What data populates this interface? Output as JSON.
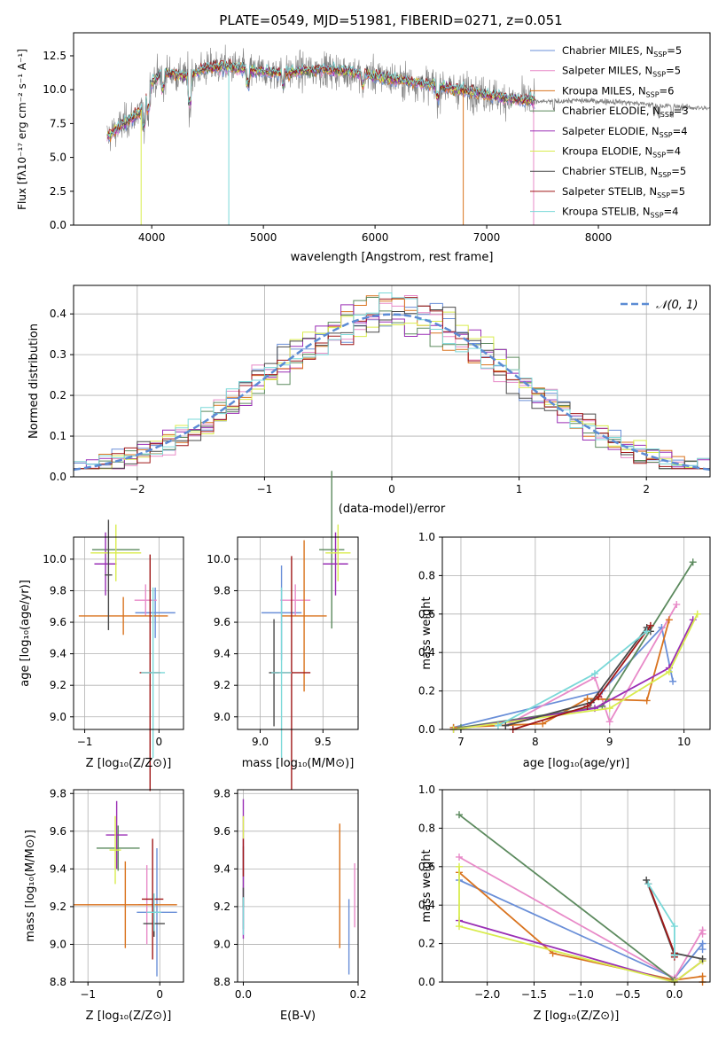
{
  "chart_data": [
    {
      "id": "spectrum",
      "type": "line",
      "title": "PLATE=0549, MJD=51981, FIBERID=0271, z=0.051",
      "xlabel": "wavelength [Angstrom, rest frame]",
      "ylabel": "Flux [fλ10⁻¹⁷ erg cm⁻² s⁻¹ A⁻¹]",
      "xlim": [
        3300,
        9000
      ],
      "ylim": [
        0,
        14.2
      ],
      "xticks": [
        4000,
        5000,
        6000,
        7000,
        8000
      ],
      "yticks": [
        "0.0",
        "2.5",
        "5.0",
        "7.5",
        "10.0",
        "12.5"
      ],
      "legend_position": "top-right",
      "series": [
        {
          "name": "Chabrier MILES, N_SSP=5",
          "label": "Chabrier MILES, N",
          "sub": "SSP",
          "suffix": "=5",
          "color": "#6a8fd8"
        },
        {
          "name": "Salpeter MILES, N_SSP=5",
          "label": "Salpeter MILES, N",
          "sub": "SSP",
          "suffix": "=5",
          "color": "#e88ac8"
        },
        {
          "name": "Kroupa MILES, N_SSP=6",
          "label": "Kroupa MILES, N",
          "sub": "SSP",
          "suffix": "=6",
          "color": "#d9731e"
        },
        {
          "name": "Chabrier ELODIE, N_SSP=3",
          "label": "Chabrier ELODIE, N",
          "sub": "SSP",
          "suffix": "=3",
          "color": "#5c8a5e"
        },
        {
          "name": "Salpeter ELODIE, N_SSP=4",
          "label": "Salpeter ELODIE, N",
          "sub": "SSP",
          "suffix": "=4",
          "color": "#9a2fb5"
        },
        {
          "name": "Kroupa ELODIE, N_SSP=4",
          "label": "Kroupa ELODIE, N",
          "sub": "SSP",
          "suffix": "=4",
          "color": "#d9ec4e"
        },
        {
          "name": "Chabrier STELIB, N_SSP=5",
          "label": "Chabrier STELIB, N",
          "sub": "SSP",
          "suffix": "=5",
          "color": "#4a4a4a"
        },
        {
          "name": "Salpeter STELIB, N_SSP=5",
          "label": "Salpeter STELIB, N",
          "sub": "SSP",
          "suffix": "=5",
          "color": "#a01818"
        },
        {
          "name": "Kroupa STELIB, N_SSP=4",
          "label": "Kroupa STELIB, N",
          "sub": "SSP",
          "suffix": "=4",
          "color": "#7ad8d8"
        }
      ],
      "data_color": "#808080",
      "continuum": [
        [
          3600,
          6.5
        ],
        [
          3700,
          7.2
        ],
        [
          3900,
          8.4
        ],
        [
          4000,
          10.5
        ],
        [
          4100,
          11.3
        ],
        [
          4300,
          11.0
        ],
        [
          4500,
          11.6
        ],
        [
          4700,
          11.7
        ],
        [
          4900,
          11.4
        ],
        [
          5200,
          11.2
        ],
        [
          5500,
          11.5
        ],
        [
          5800,
          11.3
        ],
        [
          6000,
          11.0
        ],
        [
          6300,
          10.6
        ],
        [
          6600,
          10.2
        ],
        [
          6900,
          9.8
        ],
        [
          7200,
          9.3
        ],
        [
          7500,
          9.1
        ],
        [
          7800,
          9.2
        ],
        [
          8200,
          9.1
        ],
        [
          8600,
          8.8
        ],
        [
          9000,
          8.6
        ]
      ]
    },
    {
      "id": "residuals",
      "type": "histogram",
      "xlabel": "(data-model)/error",
      "ylabel": "Normed distribution",
      "xlim": [
        -2.5,
        2.5
      ],
      "ylim": [
        0,
        0.47
      ],
      "xticks": [
        "−2",
        "−1",
        "0",
        "1",
        "2"
      ],
      "xtick_values": [
        -2,
        -1,
        0,
        1,
        2
      ],
      "yticks": [
        "0.0",
        "0.1",
        "0.2",
        "0.3",
        "0.4"
      ],
      "ytick_values": [
        0,
        0.1,
        0.2,
        0.3,
        0.4
      ],
      "grid": true,
      "reference_curve": {
        "name": "𝒩(0, 1)",
        "color": "#5b8bd4"
      },
      "legend_position": "top-right"
    },
    {
      "id": "age_vs_Z",
      "type": "errorbar",
      "xlabel": "Z [log₁₀(Z/Z⊙)]",
      "ylabel": "age  [log₁₀(age/yr)]",
      "xlim": [
        -1.15,
        0.33
      ],
      "ylim": [
        8.92,
        10.14
      ],
      "xticks": [
        "−1",
        "0"
      ],
      "xtick_values": [
        -1,
        0
      ],
      "yticks": [
        "9.0",
        "9.2",
        "9.4",
        "9.6",
        "9.8",
        "10.0"
      ],
      "ytick_values": [
        9.0,
        9.2,
        9.4,
        9.6,
        9.8,
        10.0
      ],
      "points": [
        {
          "series": "Chabrier MILES",
          "x": -0.05,
          "y": 9.66,
          "xerr": 0.27,
          "yerr": 0.16
        },
        {
          "series": "Salpeter MILES",
          "x": -0.18,
          "y": 9.74,
          "xerr": 0.15,
          "yerr": 0.1
        },
        {
          "series": "Kroupa MILES",
          "x": -0.48,
          "y": 9.64,
          "xerr": 0.6,
          "yerr": 0.12
        },
        {
          "series": "Chabrier ELODIE",
          "x": -0.58,
          "y": 10.06,
          "xerr": 0.32,
          "yerr": 0.0
        },
        {
          "series": "Salpeter ELODIE",
          "x": -0.72,
          "y": 9.97,
          "xerr": 0.15,
          "yerr": 0.2
        },
        {
          "series": "Kroupa ELODIE",
          "x": -0.58,
          "y": 10.04,
          "xerr": 0.34,
          "yerr": 0.18
        },
        {
          "series": "Chabrier STELIB",
          "x": -0.68,
          "y": 9.9,
          "xerr": 0.05,
          "yerr": 0.35
        },
        {
          "series": "Salpeter STELIB",
          "x": -0.12,
          "y": 9.28,
          "xerr": 0.14,
          "yerr": 0.75
        },
        {
          "series": "Kroupa STELIB",
          "x": -0.08,
          "y": 9.28,
          "xerr": 0.16,
          "yerr": 0.54
        }
      ]
    },
    {
      "id": "age_vs_mass",
      "type": "errorbar",
      "xlabel": "mass [log₁₀(M/M⊙)]",
      "ylabel": "",
      "xlim": [
        8.82,
        9.78
      ],
      "ylim": [
        8.92,
        10.14
      ],
      "xticks": [
        "9.0",
        "9.5"
      ],
      "xtick_values": [
        9.0,
        9.5
      ],
      "yticks": [
        "9.0",
        "9.2",
        "9.4",
        "9.6",
        "9.8",
        "10.0"
      ],
      "ytick_values": [
        9.0,
        9.2,
        9.4,
        9.6,
        9.8,
        10.0
      ],
      "points": [
        {
          "series": "Chabrier MILES",
          "x": 9.17,
          "y": 9.66,
          "xerr": 0.16,
          "yerr": 0.3
        },
        {
          "series": "Salpeter MILES",
          "x": 9.28,
          "y": 9.74,
          "xerr": 0.12,
          "yerr": 0.1
        },
        {
          "series": "Kroupa MILES",
          "x": 9.35,
          "y": 9.64,
          "xerr": 0.18,
          "yerr": 0.48
        },
        {
          "series": "Chabrier ELODIE",
          "x": 9.57,
          "y": 10.06,
          "xerr": 0.1,
          "yerr": 0.5
        },
        {
          "series": "Salpeter ELODIE",
          "x": 9.6,
          "y": 9.97,
          "xerr": 0.1,
          "yerr": 0.2
        },
        {
          "series": "Kroupa ELODIE",
          "x": 9.62,
          "y": 10.04,
          "xerr": 0.1,
          "yerr": 0.18
        },
        {
          "series": "Chabrier STELIB",
          "x": 9.11,
          "y": 9.28,
          "xerr": 0.04,
          "yerr": 0.34
        },
        {
          "series": "Salpeter STELIB",
          "x": 9.25,
          "y": 9.28,
          "xerr": 0.15,
          "yerr": 0.74
        },
        {
          "series": "Kroupa STELIB",
          "x": 9.17,
          "y": 9.28,
          "xerr": 0.08,
          "yerr": 0.54
        }
      ]
    },
    {
      "id": "mass_weight_vs_age",
      "type": "line",
      "xlabel": "age  [log₁₀(age/yr)]",
      "ylabel": "mass weight",
      "xlim": [
        6.75,
        10.35
      ],
      "ylim": [
        0,
        1.0
      ],
      "xticks": [
        "7",
        "8",
        "9",
        "10"
      ],
      "xtick_values": [
        7,
        8,
        9,
        10
      ],
      "yticks": [
        "0.0",
        "0.2",
        "0.4",
        "0.6",
        "0.8",
        "1.0"
      ],
      "ytick_values": [
        0,
        0.2,
        0.4,
        0.6,
        0.8,
        1.0
      ],
      "grid": true,
      "series": [
        {
          "name": "Chabrier MILES",
          "x": [
            6.9,
            8.9,
            9.7,
            9.85
          ],
          "y": [
            0.01,
            0.2,
            0.53,
            0.25
          ]
        },
        {
          "name": "Salpeter MILES",
          "x": [
            7.6,
            8.8,
            9.0,
            9.9
          ],
          "y": [
            0.02,
            0.27,
            0.04,
            0.65
          ]
        },
        {
          "name": "Kroupa MILES",
          "x": [
            6.9,
            8.1,
            8.7,
            9.5,
            9.8
          ],
          "y": [
            0.01,
            0.03,
            0.16,
            0.15,
            0.57
          ]
        },
        {
          "name": "Chabrier ELODIE",
          "x": [
            7.0,
            8.9,
            10.12
          ],
          "y": [
            0.01,
            0.12,
            0.87
          ]
        },
        {
          "name": "Salpeter ELODIE",
          "x": [
            6.9,
            8.8,
            9.8,
            10.12
          ],
          "y": [
            0.0,
            0.11,
            0.32,
            0.57
          ]
        },
        {
          "name": "Kroupa ELODIE",
          "x": [
            6.9,
            9.0,
            9.8,
            10.18
          ],
          "y": [
            0.0,
            0.11,
            0.3,
            0.6
          ]
        },
        {
          "name": "Chabrier STELIB",
          "x": [
            7.6,
            8.75,
            9.5,
            9.55
          ],
          "y": [
            0.02,
            0.14,
            0.53,
            0.51
          ]
        },
        {
          "name": "Salpeter STELIB",
          "x": [
            7.7,
            8.7,
            8.85,
            9.55
          ],
          "y": [
            0.0,
            0.12,
            0.17,
            0.54
          ]
        },
        {
          "name": "Kroupa STELIB",
          "x": [
            7.5,
            8.8,
            9.5
          ],
          "y": [
            0.02,
            0.29,
            0.51
          ]
        }
      ]
    },
    {
      "id": "mass_vs_Z",
      "type": "errorbar",
      "xlabel": "Z [log₁₀(Z/Z⊙)]",
      "ylabel": "mass [log₁₀(M/M⊙)]",
      "xlim": [
        -1.2,
        0.33
      ],
      "ylim": [
        8.8,
        9.82
      ],
      "xticks": [
        "−1",
        "0"
      ],
      "xtick_values": [
        -1,
        0
      ],
      "yticks": [
        "8.8",
        "9.0",
        "9.2",
        "9.4",
        "9.6",
        "9.8"
      ],
      "ytick_values": [
        8.8,
        9.0,
        9.2,
        9.4,
        9.6,
        9.8
      ],
      "points": [
        {
          "series": "Chabrier MILES",
          "x": -0.04,
          "y": 9.17,
          "xerr": 0.28,
          "yerr": 0.34
        },
        {
          "series": "Salpeter MILES",
          "x": -0.18,
          "y": 9.21,
          "xerr": 0.12,
          "yerr": 0.21
        },
        {
          "series": "Kroupa MILES",
          "x": -0.48,
          "y": 9.21,
          "xerr": 0.72,
          "yerr": 0.23
        },
        {
          "series": "Chabrier ELODIE",
          "x": -0.58,
          "y": 9.51,
          "xerr": 0.3,
          "yerr": 0.12
        },
        {
          "series": "Salpeter ELODIE",
          "x": -0.6,
          "y": 9.58,
          "xerr": 0.15,
          "yerr": 0.18
        },
        {
          "series": "Kroupa ELODIE",
          "x": -0.62,
          "y": 9.5,
          "xerr": 0.08,
          "yerr": 0.18
        },
        {
          "series": "Chabrier STELIB",
          "x": -0.08,
          "y": 9.11,
          "xerr": 0.15,
          "yerr": 0.07
        },
        {
          "series": "Salpeter STELIB",
          "x": -0.1,
          "y": 9.24,
          "xerr": 0.15,
          "yerr": 0.32
        },
        {
          "series": "Kroupa STELIB",
          "x": -0.08,
          "y": 9.17,
          "xerr": 0.1,
          "yerr": 0.1
        }
      ]
    },
    {
      "id": "mass_vs_EBV",
      "type": "errorbar",
      "xlabel": "E(B-V)",
      "ylabel": "",
      "xlim": [
        -0.01,
        0.2
      ],
      "ylim": [
        8.8,
        9.82
      ],
      "xticks": [
        "0.0",
        "0.2"
      ],
      "xtick_values": [
        0.0,
        0.2
      ],
      "yticks": [
        "8.8",
        "9.0",
        "9.2",
        "9.4",
        "9.6",
        "9.8"
      ],
      "ytick_values": [
        8.8,
        9.0,
        9.2,
        9.4,
        9.6,
        9.8
      ],
      "points": [
        {
          "series": "Chabrier MILES",
          "x": 0.184,
          "y": 9.04,
          "xerr": 0.0,
          "yerr": 0.2
        },
        {
          "series": "Salpeter MILES",
          "x": 0.194,
          "y": 9.26,
          "xerr": 0.0,
          "yerr": 0.17
        },
        {
          "series": "Kroupa MILES",
          "x": 0.168,
          "y": 9.31,
          "xerr": 0.0,
          "yerr": 0.33
        },
        {
          "series": "Chabrier ELODIE",
          "x": 0.0,
          "y": 9.3,
          "xerr": 0.0,
          "yerr": 0.22
        },
        {
          "series": "Salpeter ELODIE",
          "x": 0.0,
          "y": 9.4,
          "xerr": 0.0,
          "yerr": 0.37
        },
        {
          "series": "Kroupa ELODIE",
          "x": 0.0,
          "y": 9.62,
          "xerr": 0.0,
          "yerr": 0.06
        },
        {
          "series": "Chabrier STELIB",
          "x": 0.0,
          "y": 9.25,
          "xerr": 0.0,
          "yerr": 0.05
        },
        {
          "series": "Salpeter STELIB",
          "x": 0.0,
          "y": 9.46,
          "xerr": 0.0,
          "yerr": 0.1
        },
        {
          "series": "Kroupa STELIB",
          "x": 0.0,
          "y": 9.15,
          "xerr": 0.0,
          "yerr": 0.1
        }
      ]
    },
    {
      "id": "mass_weight_vs_Z",
      "type": "line",
      "xlabel": "Z [log₁₀(Z/Z⊙)]",
      "ylabel": "mass weight",
      "xlim": [
        -2.48,
        0.38
      ],
      "ylim": [
        0,
        1.0
      ],
      "xticks": [
        "−2.0",
        "−1.5",
        "−1.0",
        "−0.5",
        "0.0"
      ],
      "xtick_values": [
        -2.0,
        -1.5,
        -1.0,
        -0.5,
        0.0
      ],
      "yticks": [
        "0.0",
        "0.2",
        "0.4",
        "0.6",
        "0.8",
        "1.0"
      ],
      "ytick_values": [
        0,
        0.2,
        0.4,
        0.6,
        0.8,
        1.0
      ],
      "grid": true,
      "series": [
        {
          "name": "Chabrier MILES",
          "x": [
            -2.3,
            0.0,
            0.3,
            0.3
          ],
          "y": [
            0.53,
            0.02,
            0.2,
            0.17
          ]
        },
        {
          "name": "Salpeter MILES",
          "x": [
            -2.3,
            0.0,
            0.3,
            0.3
          ],
          "y": [
            0.65,
            0.02,
            0.27,
            0.25
          ]
        },
        {
          "name": "Kroupa MILES",
          "x": [
            -2.3,
            -1.3,
            0.0,
            0.3,
            0.3
          ],
          "y": [
            0.57,
            0.15,
            0.01,
            0.03,
            0.0
          ]
        },
        {
          "name": "Chabrier ELODIE",
          "x": [
            -2.3,
            0.0
          ],
          "y": [
            0.87,
            0.01
          ]
        },
        {
          "name": "Salpeter ELODIE",
          "x": [
            -2.3,
            0.0,
            0.3
          ],
          "y": [
            0.32,
            0.0,
            0.11
          ]
        },
        {
          "name": "Kroupa ELODIE",
          "x": [
            -2.3,
            -2.3,
            0.0,
            0.3
          ],
          "y": [
            0.6,
            0.29,
            0.0,
            0.11
          ]
        },
        {
          "name": "Chabrier STELIB",
          "x": [
            -0.3,
            0.0,
            0.0,
            0.3
          ],
          "y": [
            0.53,
            0.14,
            0.15,
            0.12
          ]
        },
        {
          "name": "Salpeter STELIB",
          "x": [
            -0.28,
            0.0,
            0.0
          ],
          "y": [
            0.51,
            0.15,
            0.13
          ]
        },
        {
          "name": "Kroupa STELIB",
          "x": [
            -0.28,
            0.0,
            0.0
          ],
          "y": [
            0.51,
            0.29,
            0.14
          ]
        }
      ]
    }
  ]
}
